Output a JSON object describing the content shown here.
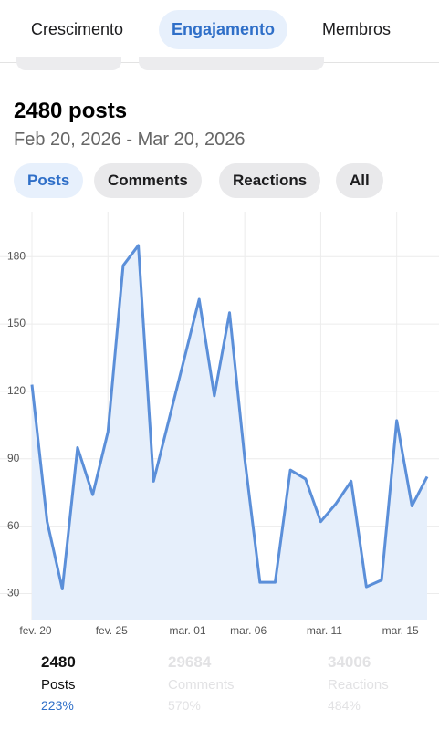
{
  "tabs": [
    "Crescimento",
    "Engajamento",
    "Membros"
  ],
  "summary": {
    "title": "2480 posts",
    "date_range": "Feb 20, 2026 - Mar 20, 2026"
  },
  "filters": [
    "Posts",
    "Comments",
    "Reactions",
    "All"
  ],
  "chart_data": {
    "type": "line",
    "categories": [
      "fev. 20",
      null,
      null,
      null,
      null,
      "fev. 25",
      null,
      null,
      null,
      null,
      "mar. 01",
      null,
      null,
      null,
      "mar. 06",
      null,
      null,
      null,
      null,
      "mar. 11",
      null,
      null,
      null,
      null,
      "mar. 15",
      null,
      null
    ],
    "series": [
      {
        "name": "Posts",
        "color": "#5b8fd9",
        "values": [
          123,
          62,
          32,
          95,
          74,
          102,
          176,
          185,
          80,
          107,
          134,
          161,
          118,
          155,
          90,
          35,
          35,
          85,
          81,
          62,
          70,
          80,
          33,
          36,
          107,
          69,
          82
        ]
      }
    ],
    "ylim": [
      18,
      200
    ],
    "yticks": [
      30,
      60,
      90,
      120,
      150,
      180
    ],
    "grid": true
  },
  "stats": [
    {
      "value": "2480",
      "label": "Posts",
      "change": "223%"
    },
    {
      "value": "29684",
      "label": "Comments",
      "change": "570%"
    },
    {
      "value": "34006",
      "label": "Reactions",
      "change": "484%"
    }
  ]
}
